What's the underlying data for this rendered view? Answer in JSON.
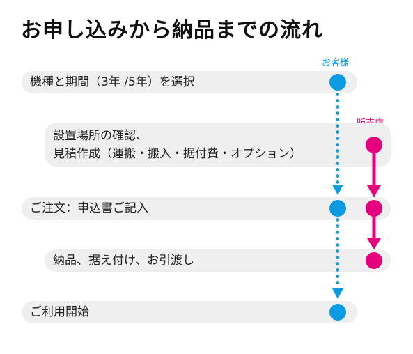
{
  "title": "お申し込みから納品までの流れ",
  "legend": {
    "customer": "お客様",
    "store": "販売店"
  },
  "colors": {
    "customer": "#0a9be0",
    "store": "#e6007e",
    "bar": "#efefef"
  },
  "steps": [
    {
      "lines": [
        "機種と期間（3年 /5年）を選択"
      ],
      "actors": [
        "customer"
      ]
    },
    {
      "lines": [
        "設置場所の確認、",
        "見積作成（運搬・搬入・据付費・オプション）"
      ],
      "actors": [
        "store"
      ]
    },
    {
      "lines": [
        "ご注文：申込書ご記入"
      ],
      "actors": [
        "customer",
        "store"
      ]
    },
    {
      "lines": [
        "納品、据え付け、お引渡し"
      ],
      "actors": [
        "store"
      ]
    },
    {
      "lines": [
        "ご利用開始"
      ],
      "actors": [
        "customer"
      ]
    }
  ]
}
